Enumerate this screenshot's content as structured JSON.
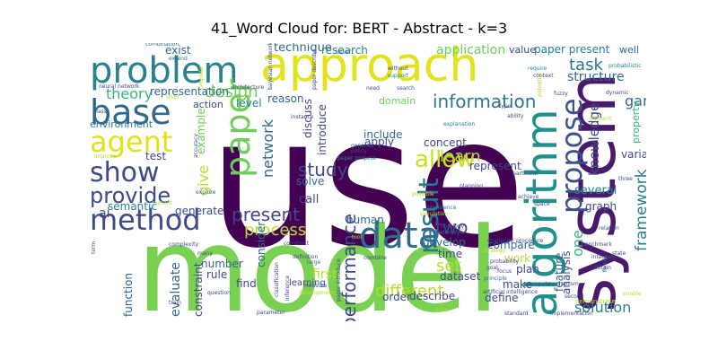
{
  "title": "41_Word Cloud for: BERT - Abstract - k=3",
  "palette": {
    "dark_purple": "#481a6c",
    "indigo": "#3e4a89",
    "blue": "#31688e",
    "teal": "#26828e",
    "teal_green": "#1f9e89",
    "green": "#35b779",
    "lime": "#6ece58",
    "yellow_green": "#b5de2b",
    "yellow": "#e0e31a"
  },
  "words": [
    {
      "text": "use",
      "color": "#440154"
    },
    {
      "text": "model",
      "color": "#7ad151"
    },
    {
      "text": "approach",
      "color": "#e1e31b"
    },
    {
      "text": "system",
      "color": "#481a6c"
    },
    {
      "text": "problem",
      "color": "#26828e"
    },
    {
      "text": "algorithm",
      "color": "#21908d"
    },
    {
      "text": "data",
      "color": "#31688e"
    },
    {
      "text": "method",
      "color": "#3e4a89"
    },
    {
      "text": "base",
      "color": "#31688e"
    },
    {
      "text": "paper",
      "color": "#6ece58"
    },
    {
      "text": "agent",
      "color": "#e0e31a"
    },
    {
      "text": "show",
      "color": "#3e4a89"
    },
    {
      "text": "result",
      "color": "#2a788e"
    },
    {
      "text": "propose",
      "color": "#3b528b"
    },
    {
      "text": "provide",
      "color": "#3e4a89"
    },
    {
      "text": "allow",
      "color": "#c8e020"
    },
    {
      "text": "information",
      "color": "#2a788e"
    },
    {
      "text": "framework",
      "color": "#26828e"
    },
    {
      "text": "performance",
      "color": "#3e4a89"
    },
    {
      "text": "different",
      "color": "#b5de2b"
    },
    {
      "text": "network",
      "color": "#31688e"
    },
    {
      "text": "present",
      "color": "#3e4a89"
    },
    {
      "text": "study",
      "color": "#3e4a89"
    },
    {
      "text": "learn",
      "color": "#b5de2b"
    },
    {
      "text": "process",
      "color": "#b5de2b"
    },
    {
      "text": "design",
      "color": "#6ece58"
    },
    {
      "text": "give",
      "color": "#b5de2b"
    },
    {
      "text": "task",
      "color": "#2a788e"
    },
    {
      "text": "knowledge",
      "color": "#3e4a89"
    },
    {
      "text": "solution",
      "color": "#26828e"
    },
    {
      "text": "two",
      "color": "#3e4a89"
    },
    {
      "text": "set",
      "color": "#b5de2b"
    },
    {
      "text": "structure",
      "color": "#31688e"
    },
    {
      "text": "theory",
      "color": "#35b779"
    },
    {
      "text": "game",
      "color": "#31688e"
    },
    {
      "text": "one",
      "color": "#35b779"
    },
    {
      "text": "ai",
      "color": "#3e4a89"
    },
    {
      "text": "test",
      "color": "#3e4a89"
    },
    {
      "text": "exist",
      "color": "#31688e"
    },
    {
      "text": "technique",
      "color": "#31688e"
    },
    {
      "text": "research",
      "color": "#26828e"
    },
    {
      "text": "application",
      "color": "#6ece58"
    },
    {
      "text": "paper present",
      "color": "#26828e"
    },
    {
      "text": "value",
      "color": "#3e4a89"
    },
    {
      "text": "well",
      "color": "#31688e"
    },
    {
      "text": "representation",
      "color": "#31688e"
    },
    {
      "text": "level",
      "color": "#26828e"
    },
    {
      "text": "reason",
      "color": "#31688e"
    },
    {
      "text": "discuss",
      "color": "#3e4a89"
    },
    {
      "text": "introduce",
      "color": "#3e4a89"
    },
    {
      "text": "domain",
      "color": "#6ece58"
    },
    {
      "text": "include",
      "color": "#31688e"
    },
    {
      "text": "concept",
      "color": "#3e4a89"
    },
    {
      "text": "apply",
      "color": "#3e4a89"
    },
    {
      "text": "action",
      "color": "#3e4a89"
    },
    {
      "text": "environment",
      "color": "#2a788e"
    },
    {
      "text": "example",
      "color": "#6ece58"
    },
    {
      "text": "semantic",
      "color": "#26828e"
    },
    {
      "text": "generate",
      "color": "#3e4a89"
    },
    {
      "text": "consider",
      "color": "#31688e"
    },
    {
      "text": "first",
      "color": "#b5de2b"
    },
    {
      "text": "call",
      "color": "#3e4a89"
    },
    {
      "text": "solve",
      "color": "#31688e"
    },
    {
      "text": "human",
      "color": "#31688e"
    },
    {
      "text": "represent",
      "color": "#3e4a89"
    },
    {
      "text": "variable",
      "color": "#3e4a89"
    },
    {
      "text": "several",
      "color": "#26828e"
    },
    {
      "text": "graph",
      "color": "#3e4a89"
    },
    {
      "text": "develop",
      "color": "#31688e"
    },
    {
      "text": "time",
      "color": "#3e4a89"
    },
    {
      "text": "dataset",
      "color": "#3e4a89"
    },
    {
      "text": "compare",
      "color": "#31688e"
    },
    {
      "text": "work",
      "color": "#b5de2b"
    },
    {
      "text": "plan",
      "color": "#3e4a89"
    },
    {
      "text": "make",
      "color": "#3e4a89"
    },
    {
      "text": "define",
      "color": "#3e4a89"
    },
    {
      "text": "feature",
      "color": "#31688e"
    },
    {
      "text": "analysis",
      "color": "#3e4a89"
    },
    {
      "text": "property",
      "color": "#35b779"
    },
    {
      "text": "order",
      "color": "#3e4a89"
    },
    {
      "text": "describe",
      "color": "#3e4a89"
    },
    {
      "text": "number",
      "color": "#31688e"
    },
    {
      "text": "rule",
      "color": "#3e4a89"
    },
    {
      "text": "find",
      "color": "#3e4a89"
    },
    {
      "text": "evaluate",
      "color": "#31688e"
    },
    {
      "text": "function",
      "color": "#31688e"
    },
    {
      "text": "constraint",
      "color": "#3e4a89"
    },
    {
      "text": "learning",
      "color": "#3e4a89"
    },
    {
      "text": "combination",
      "color": "#31688e"
    },
    {
      "text": "neural network",
      "color": "#3e4a89"
    },
    {
      "text": "extend",
      "color": "#31688e"
    },
    {
      "text": "complete",
      "color": "#b5de2b"
    },
    {
      "text": "user",
      "color": "#b5de2b"
    },
    {
      "text": "architecture",
      "color": "#3e4a89"
    },
    {
      "text": "bayesian network",
      "color": "#3e4a89"
    },
    {
      "text": "paper describe",
      "color": "#3e4a89"
    },
    {
      "text": "belief",
      "color": "#31688e"
    },
    {
      "text": "without",
      "color": "#3e4a89"
    },
    {
      "text": "support",
      "color": "#26828e"
    },
    {
      "text": "need",
      "color": "#3e4a89"
    },
    {
      "text": "search",
      "color": "#3e4a89"
    },
    {
      "text": "require",
      "color": "#26828e"
    },
    {
      "text": "context",
      "color": "#3e4a89"
    },
    {
      "text": "potential",
      "color": "#b5de2b"
    },
    {
      "text": "type",
      "color": "#3e4a89"
    },
    {
      "text": "ability",
      "color": "#3e4a89"
    },
    {
      "text": "fuzzy",
      "color": "#3e4a89"
    },
    {
      "text": "dynamic",
      "color": "#3e4a89"
    },
    {
      "text": "probabilistic",
      "color": "#26828e"
    },
    {
      "text": "efficient",
      "color": "#b5de2b"
    },
    {
      "text": "class",
      "color": "#3e4a89"
    },
    {
      "text": "improve",
      "color": "#b5de2b"
    },
    {
      "text": "explanation",
      "color": "#26828e"
    },
    {
      "text": "general",
      "color": "#31688e"
    },
    {
      "text": "policy",
      "color": "#3e4a89"
    },
    {
      "text": "paper propose",
      "color": "#26828e"
    },
    {
      "text": "possible",
      "color": "#b5de2b"
    },
    {
      "text": "planning",
      "color": "#3e4a89"
    },
    {
      "text": "particular",
      "color": "#3e4a89"
    },
    {
      "text": "achieve",
      "color": "#3e4a89"
    },
    {
      "text": "space",
      "color": "#3e4a89"
    },
    {
      "text": "preference",
      "color": "#26828e"
    },
    {
      "text": "challenge",
      "color": "#3e4a89"
    },
    {
      "text": "procedure",
      "color": "#3e4a89"
    },
    {
      "text": "simulation",
      "color": "#b5de2b"
    },
    {
      "text": "ontology",
      "color": "#3e4a89"
    },
    {
      "text": "identify",
      "color": "#31688e"
    },
    {
      "text": "strategy",
      "color": "#b5de2b"
    },
    {
      "text": "probability",
      "color": "#3e4a89"
    },
    {
      "text": "relation",
      "color": "#3e4a89"
    },
    {
      "text": "benchmark",
      "color": "#3e4a89"
    },
    {
      "text": "integrate",
      "color": "#3e4a89"
    },
    {
      "text": "state",
      "color": "#3e4a89"
    },
    {
      "text": "goal",
      "color": "#3e4a89"
    },
    {
      "text": "focus",
      "color": "#3e4a89"
    },
    {
      "text": "principle",
      "color": "#31688e"
    },
    {
      "text": "artificial intelligence",
      "color": "#3e4a89"
    },
    {
      "text": "compute",
      "color": "#3e4a89"
    },
    {
      "text": "mechanism",
      "color": "#3e4a89"
    },
    {
      "text": "implementation",
      "color": "#3e4a89"
    },
    {
      "text": "standard",
      "color": "#3e4a89"
    },
    {
      "text": "second",
      "color": "#3e4a89"
    },
    {
      "text": "enable",
      "color": "#b5de2b"
    },
    {
      "text": "demonstrate",
      "color": "#b5de2b"
    },
    {
      "text": "combine",
      "color": "#3e4a89"
    },
    {
      "text": "classification",
      "color": "#3e4a89"
    },
    {
      "text": "inference",
      "color": "#3e4a89"
    },
    {
      "text": "measure",
      "color": "#3e4a89"
    },
    {
      "text": "development",
      "color": "#b5de2b"
    },
    {
      "text": "paper introduce",
      "color": "#3e4a89"
    },
    {
      "text": "form",
      "color": "#b5de2b"
    },
    {
      "text": "question",
      "color": "#3e4a89"
    },
    {
      "text": "train",
      "color": "#3e4a89"
    },
    {
      "text": "parameter",
      "color": "#3e4a89"
    },
    {
      "text": "construct",
      "color": "#3e4a89"
    },
    {
      "text": "large",
      "color": "#31688e"
    },
    {
      "text": "many",
      "color": "#3e4a89"
    },
    {
      "text": "term",
      "color": "#31688e"
    },
    {
      "text": "complexity",
      "color": "#3e4a89"
    },
    {
      "text": "current",
      "color": "#b5de2b"
    },
    {
      "text": "explore",
      "color": "#31688e"
    },
    {
      "text": "instance",
      "color": "#3e4a89"
    },
    {
      "text": "accuracy",
      "color": "#3e4a89"
    },
    {
      "text": "obtain",
      "color": "#3e4a89"
    },
    {
      "text": "three",
      "color": "#3e4a89"
    },
    {
      "text": "finally",
      "color": "#3e4a89"
    },
    {
      "text": "tool",
      "color": "#b5de2b"
    },
    {
      "text": "definition",
      "color": "#3e4a89"
    }
  ]
}
